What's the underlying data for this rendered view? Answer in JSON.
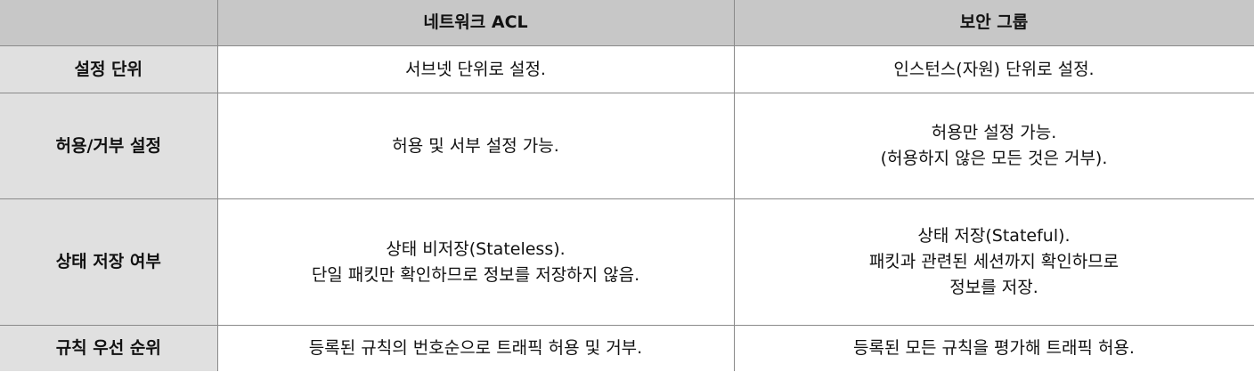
{
  "table": {
    "headers": {
      "corner": "",
      "col1": "네트워크 ACL",
      "col2": "보안 그룹"
    },
    "rows": [
      {
        "label": "설정 단위",
        "acl": [
          "서브넷 단위로 설정."
        ],
        "sg": [
          "인스턴스(자원) 단위로 설정."
        ]
      },
      {
        "label": "허용/거부 설정",
        "acl": [
          "허용 및 서부 설정 가능."
        ],
        "sg": [
          "허용만 설정 가능.",
          "(허용하지 않은 모든 것은 거부)."
        ]
      },
      {
        "label": "상태 저장 여부",
        "acl": [
          "상태 비저장(Stateless).",
          "단일 패킷만 확인하므로 정보를 저장하지 않음."
        ],
        "sg": [
          "상태 저장(Stateful).",
          "패킷과 관련된 세션까지 확인하므로",
          "정보를 저장."
        ]
      },
      {
        "label": "규칙 우선 순위",
        "acl": [
          "등록된 규칙의 번호순으로 트래픽 허용 및 거부."
        ],
        "sg": [
          "등록된 모든 규칙을 평가해 트래픽 허용."
        ]
      }
    ]
  },
  "colors": {
    "header_bg": "#c7c7c7",
    "rowhead_bg": "#e0e0e0",
    "border": "#8a8a8a"
  }
}
